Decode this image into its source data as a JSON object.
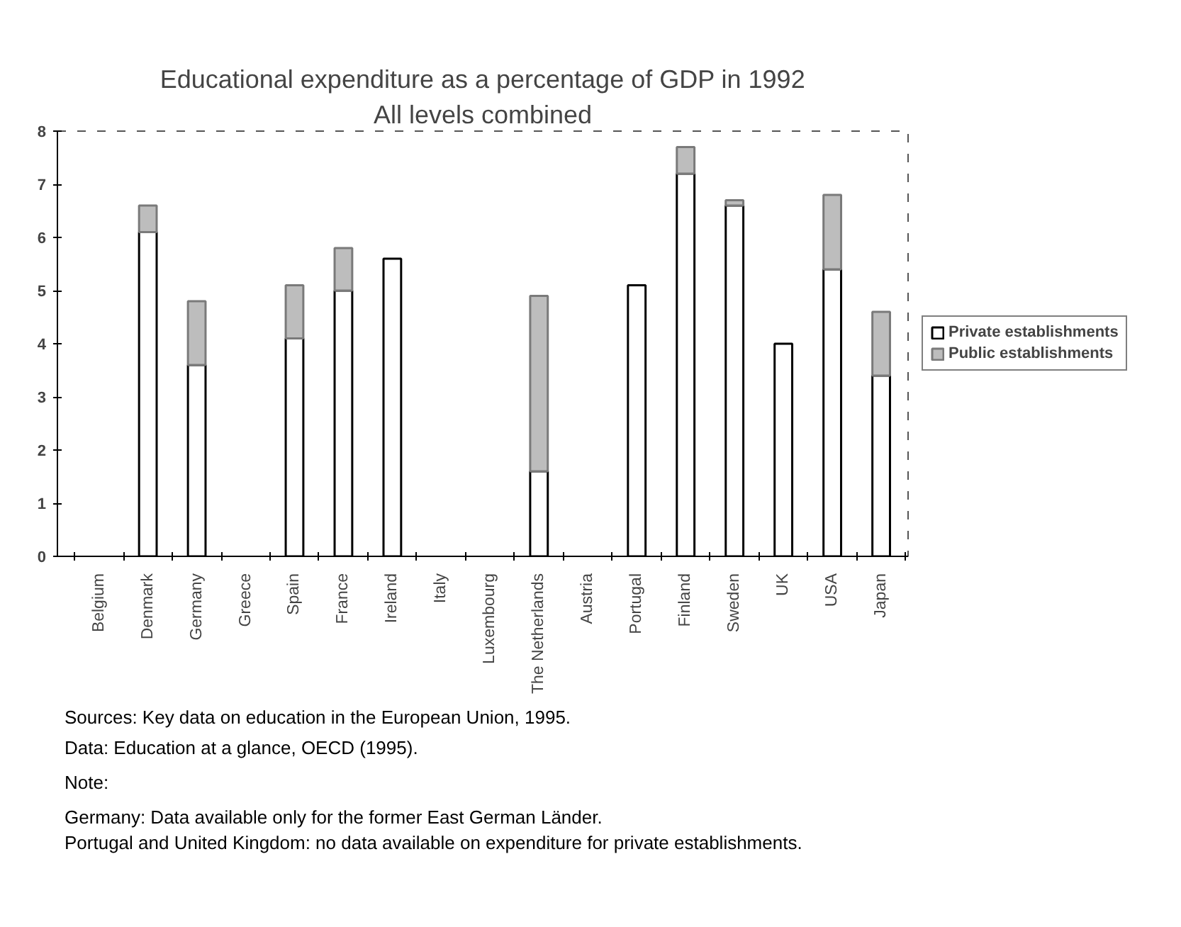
{
  "chart_data": {
    "type": "bar",
    "title": "Educational expenditure as a percentage of GDP in 1992",
    "subtitle": "All levels combined",
    "categories": [
      "Belgium",
      "Denmark",
      "Germany",
      "Greece",
      "Spain",
      "France",
      "Ireland",
      "Italy",
      "Luxembourg",
      "The Netherlands",
      "Austria",
      "Portugal",
      "Finland",
      "Sweden",
      "UK",
      "USA",
      "Japan"
    ],
    "series": [
      {
        "name": "Private establishments",
        "color": "#ffffff",
        "values": [
          null,
          6.1,
          3.6,
          null,
          4.1,
          5.0,
          5.6,
          null,
          null,
          1.6,
          null,
          5.1,
          7.2,
          6.6,
          4.0,
          5.4,
          3.4
        ]
      },
      {
        "name": "Public establishments",
        "color": "#bdbdbd",
        "values": [
          null,
          0.5,
          1.2,
          null,
          1.0,
          0.8,
          null,
          null,
          null,
          3.3,
          null,
          null,
          0.5,
          0.1,
          null,
          1.4,
          1.2
        ]
      }
    ],
    "stacked": true,
    "ylim": [
      0,
      8
    ],
    "yticks": [
      0,
      1,
      2,
      3,
      4,
      5,
      6,
      7,
      8
    ],
    "grid": false,
    "legend": "right",
    "annotations": [
      "Sources: Key data on education in the European Union, 1995.",
      "Data: Education at a glance, OECD (1995).",
      "Note:",
      "Germany: Data available only for the former East German Länder.",
      "Portugal and United Kingdom: no data available on expenditure for private establishments."
    ]
  }
}
